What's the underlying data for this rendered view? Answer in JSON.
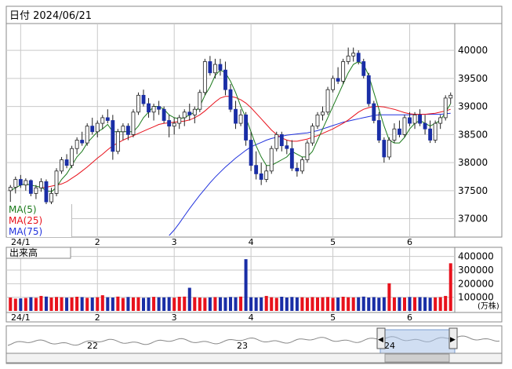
{
  "header": {
    "date_label": "日付 2024/06/21"
  },
  "colors": {
    "up": "#e8121c",
    "down": "#1a2ea6",
    "ma5": "#1b7a1b",
    "ma25": "#e8121c",
    "ma75": "#2233dd",
    "grid": "#c9c9c9",
    "border": "#8a8a8a"
  },
  "legend": [
    {
      "label": "MA(5)",
      "color": "#1b7a1b"
    },
    {
      "label": "MA(25)",
      "color": "#e8121c"
    },
    {
      "label": "MA(75)",
      "color": "#2233dd"
    }
  ],
  "volume_title": "出来高",
  "volume_unit": "(万株)",
  "navigator": {
    "labels": [
      "22",
      "23",
      "24"
    ],
    "left_handle": "◀",
    "right_handle": "▶"
  },
  "chart_data": [
    {
      "type": "candlestick",
      "title": "",
      "x_tick_labels": [
        "24/1",
        "2",
        "3",
        "4",
        "5",
        "6"
      ],
      "y_tick_labels": [
        "40000",
        "39500",
        "39000",
        "38500",
        "38000",
        "37500",
        "37000"
      ],
      "ylim": [
        36700,
        40450
      ],
      "grid": true,
      "candles": [
        {
          "o": 37500,
          "h": 37600,
          "l": 37300,
          "c": 37560
        },
        {
          "o": 37560,
          "h": 37750,
          "l": 37450,
          "c": 37700
        },
        {
          "o": 37700,
          "h": 37780,
          "l": 37550,
          "c": 37600
        },
        {
          "o": 37600,
          "h": 37720,
          "l": 37500,
          "c": 37680
        },
        {
          "o": 37680,
          "h": 37700,
          "l": 37400,
          "c": 37450
        },
        {
          "o": 37450,
          "h": 37600,
          "l": 37350,
          "c": 37550
        },
        {
          "o": 37550,
          "h": 37720,
          "l": 37480,
          "c": 37660
        },
        {
          "o": 37660,
          "h": 37700,
          "l": 37200,
          "c": 37300
        },
        {
          "o": 37300,
          "h": 37550,
          "l": 37200,
          "c": 37450
        },
        {
          "o": 37450,
          "h": 37900,
          "l": 37400,
          "c": 37850
        },
        {
          "o": 37850,
          "h": 38100,
          "l": 37800,
          "c": 38050
        },
        {
          "o": 38050,
          "h": 38150,
          "l": 37900,
          "c": 37950
        },
        {
          "o": 37950,
          "h": 38300,
          "l": 37900,
          "c": 38250
        },
        {
          "o": 38250,
          "h": 38450,
          "l": 38150,
          "c": 38400
        },
        {
          "o": 38400,
          "h": 38550,
          "l": 38300,
          "c": 38350
        },
        {
          "o": 38350,
          "h": 38700,
          "l": 38300,
          "c": 38650
        },
        {
          "o": 38650,
          "h": 38800,
          "l": 38500,
          "c": 38550
        },
        {
          "o": 38550,
          "h": 38750,
          "l": 38450,
          "c": 38700
        },
        {
          "o": 38700,
          "h": 38850,
          "l": 38600,
          "c": 38800
        },
        {
          "o": 38800,
          "h": 38950,
          "l": 38700,
          "c": 38750
        },
        {
          "o": 38750,
          "h": 38850,
          "l": 38050,
          "c": 38200
        },
        {
          "o": 38200,
          "h": 38600,
          "l": 38150,
          "c": 38550
        },
        {
          "o": 38550,
          "h": 38700,
          "l": 38400,
          "c": 38650
        },
        {
          "o": 38650,
          "h": 38700,
          "l": 38400,
          "c": 38500
        },
        {
          "o": 38500,
          "h": 38950,
          "l": 38450,
          "c": 38900
        },
        {
          "o": 38900,
          "h": 39250,
          "l": 38850,
          "c": 39200
        },
        {
          "o": 39200,
          "h": 39300,
          "l": 39000,
          "c": 39050
        },
        {
          "o": 39050,
          "h": 39150,
          "l": 38800,
          "c": 38900
        },
        {
          "o": 38900,
          "h": 39050,
          "l": 38750,
          "c": 39000
        },
        {
          "o": 39000,
          "h": 39100,
          "l": 38850,
          "c": 38950
        },
        {
          "o": 38950,
          "h": 39000,
          "l": 38700,
          "c": 38750
        },
        {
          "o": 38750,
          "h": 38850,
          "l": 38450,
          "c": 38650
        },
        {
          "o": 38650,
          "h": 38800,
          "l": 38500,
          "c": 38700
        },
        {
          "o": 38700,
          "h": 38850,
          "l": 38600,
          "c": 38800
        },
        {
          "o": 38800,
          "h": 38950,
          "l": 38650,
          "c": 38900
        },
        {
          "o": 38900,
          "h": 39050,
          "l": 38750,
          "c": 38850
        },
        {
          "o": 38850,
          "h": 39000,
          "l": 38700,
          "c": 38950
        },
        {
          "o": 38950,
          "h": 39300,
          "l": 38900,
          "c": 39250
        },
        {
          "o": 39250,
          "h": 39850,
          "l": 39200,
          "c": 39800
        },
        {
          "o": 39800,
          "h": 39900,
          "l": 39550,
          "c": 39600
        },
        {
          "o": 39600,
          "h": 39850,
          "l": 39500,
          "c": 39750
        },
        {
          "o": 39750,
          "h": 39850,
          "l": 39550,
          "c": 39650
        },
        {
          "o": 39650,
          "h": 39800,
          "l": 39200,
          "c": 39300
        },
        {
          "o": 39300,
          "h": 39400,
          "l": 38900,
          "c": 38950
        },
        {
          "o": 38950,
          "h": 39100,
          "l": 38600,
          "c": 38700
        },
        {
          "o": 38700,
          "h": 38950,
          "l": 38650,
          "c": 38850
        },
        {
          "o": 38850,
          "h": 38900,
          "l": 38300,
          "c": 38400
        },
        {
          "o": 38400,
          "h": 38550,
          "l": 37850,
          "c": 37950
        },
        {
          "o": 37950,
          "h": 38200,
          "l": 37700,
          "c": 37800
        },
        {
          "o": 37800,
          "h": 38000,
          "l": 37600,
          "c": 37700
        },
        {
          "o": 37700,
          "h": 37950,
          "l": 37650,
          "c": 37850
        },
        {
          "o": 37850,
          "h": 38300,
          "l": 37800,
          "c": 38250
        },
        {
          "o": 38250,
          "h": 38550,
          "l": 38200,
          "c": 38500
        },
        {
          "o": 38500,
          "h": 38550,
          "l": 38200,
          "c": 38300
        },
        {
          "o": 38300,
          "h": 38400,
          "l": 38150,
          "c": 38250
        },
        {
          "o": 38250,
          "h": 38400,
          "l": 37850,
          "c": 37900
        },
        {
          "o": 37900,
          "h": 38000,
          "l": 37750,
          "c": 37850
        },
        {
          "o": 37850,
          "h": 38100,
          "l": 37800,
          "c": 38050
        },
        {
          "o": 38050,
          "h": 38400,
          "l": 38000,
          "c": 38350
        },
        {
          "o": 38350,
          "h": 38700,
          "l": 38300,
          "c": 38650
        },
        {
          "o": 38650,
          "h": 38900,
          "l": 38600,
          "c": 38850
        },
        {
          "o": 38850,
          "h": 39000,
          "l": 38750,
          "c": 38900
        },
        {
          "o": 38900,
          "h": 39350,
          "l": 38850,
          "c": 39300
        },
        {
          "o": 39300,
          "h": 39550,
          "l": 39250,
          "c": 39500
        },
        {
          "o": 39500,
          "h": 39700,
          "l": 39400,
          "c": 39450
        },
        {
          "o": 39450,
          "h": 39850,
          "l": 39400,
          "c": 39800
        },
        {
          "o": 39800,
          "h": 40050,
          "l": 39750,
          "c": 39900
        },
        {
          "o": 39900,
          "h": 40050,
          "l": 39800,
          "c": 39950
        },
        {
          "o": 39950,
          "h": 40000,
          "l": 39750,
          "c": 39800
        },
        {
          "o": 39800,
          "h": 39850,
          "l": 39500,
          "c": 39550
        },
        {
          "o": 39550,
          "h": 39600,
          "l": 39000,
          "c": 39050
        },
        {
          "o": 39050,
          "h": 39100,
          "l": 38700,
          "c": 38750
        },
        {
          "o": 38750,
          "h": 38900,
          "l": 38350,
          "c": 38400
        },
        {
          "o": 38400,
          "h": 38450,
          "l": 38000,
          "c": 38100
        },
        {
          "o": 38100,
          "h": 38450,
          "l": 38050,
          "c": 38400
        },
        {
          "o": 38400,
          "h": 38700,
          "l": 38350,
          "c": 38600
        },
        {
          "o": 38600,
          "h": 38750,
          "l": 38450,
          "c": 38500
        },
        {
          "o": 38500,
          "h": 38850,
          "l": 38450,
          "c": 38800
        },
        {
          "o": 38800,
          "h": 38900,
          "l": 38650,
          "c": 38700
        },
        {
          "o": 38700,
          "h": 38900,
          "l": 38600,
          "c": 38850
        },
        {
          "o": 38850,
          "h": 38950,
          "l": 38650,
          "c": 38700
        },
        {
          "o": 38700,
          "h": 38850,
          "l": 38500,
          "c": 38600
        },
        {
          "o": 38600,
          "h": 38750,
          "l": 38350,
          "c": 38400
        },
        {
          "o": 38400,
          "h": 38750,
          "l": 38350,
          "c": 38700
        },
        {
          "o": 38700,
          "h": 38850,
          "l": 38600,
          "c": 38800
        },
        {
          "o": 38800,
          "h": 39200,
          "l": 38750,
          "c": 39150
        },
        {
          "o": 39150,
          "h": 39250,
          "l": 39050,
          "c": 39200
        }
      ],
      "ma5": [
        37500,
        37550,
        37600,
        37620,
        37600,
        37580,
        37560,
        37500,
        37480,
        37560,
        37700,
        37800,
        37950,
        38100,
        38200,
        38350,
        38450,
        38550,
        38600,
        38680,
        38550,
        38550,
        38550,
        38550,
        38550,
        38650,
        38800,
        38900,
        39000,
        39000,
        38950,
        38850,
        38800,
        38780,
        38800,
        38850,
        38900,
        39000,
        39200,
        39350,
        39550,
        39650,
        39600,
        39450,
        39250,
        39000,
        38800,
        38550,
        38300,
        38100,
        37950,
        37950,
        38000,
        38050,
        38100,
        38200,
        38150,
        38100,
        38100,
        38200,
        38400,
        38600,
        38800,
        39000,
        39200,
        39400,
        39600,
        39750,
        39800,
        39750,
        39550,
        39250,
        38950,
        38650,
        38400,
        38350,
        38350,
        38450,
        38600,
        38700,
        38750,
        38700,
        38650,
        38700,
        38750,
        38900,
        39050
      ],
      "ma25": [
        null,
        null,
        null,
        null,
        null,
        null,
        37550,
        37560,
        37580,
        37600,
        37620,
        37660,
        37720,
        37780,
        37850,
        37920,
        38000,
        38080,
        38150,
        38230,
        38300,
        38350,
        38400,
        38440,
        38480,
        38520,
        38560,
        38600,
        38640,
        38680,
        38700,
        38710,
        38720,
        38730,
        38740,
        38760,
        38800,
        38850,
        38920,
        39000,
        39080,
        39150,
        39180,
        39180,
        39160,
        39120,
        39060,
        38980,
        38880,
        38780,
        38680,
        38580,
        38500,
        38440,
        38400,
        38380,
        38380,
        38400,
        38420,
        38450,
        38480,
        38520,
        38560,
        38600,
        38650,
        38700,
        38760,
        38830,
        38900,
        38950,
        38980,
        39000,
        39000,
        38990,
        38970,
        38950,
        38920,
        38890,
        38870,
        38860,
        38860,
        38860,
        38870,
        38880,
        38900,
        38920,
        38950
      ],
      "ma75": [
        null,
        null,
        null,
        null,
        null,
        null,
        null,
        null,
        null,
        null,
        null,
        null,
        null,
        null,
        null,
        null,
        null,
        null,
        null,
        null,
        null,
        null,
        null,
        null,
        null,
        null,
        null,
        null,
        null,
        null,
        null,
        36700,
        36800,
        36920,
        37050,
        37180,
        37300,
        37420,
        37530,
        37640,
        37740,
        37830,
        37920,
        38000,
        38080,
        38150,
        38220,
        38280,
        38320,
        38360,
        38400,
        38430,
        38450,
        38470,
        38490,
        38500,
        38510,
        38520,
        38530,
        38550,
        38570,
        38600,
        38630,
        38660,
        38690,
        38720,
        38740,
        38760,
        38780,
        38800,
        38820,
        38840,
        38850,
        38850,
        38850,
        38850,
        38850,
        38850,
        38850,
        38860,
        38860,
        38860,
        38860,
        38860,
        38860,
        38870,
        38880
      ]
    },
    {
      "type": "bar",
      "title": "出来高",
      "unit": "(万株)",
      "x_tick_labels": [
        "24/1",
        "2",
        "3",
        "4",
        "5",
        "6"
      ],
      "y_tick_labels": [
        "400000",
        "300000",
        "200000",
        "100000"
      ],
      "ylim": [
        0,
        450000
      ],
      "values": [
        98000,
        90000,
        92000,
        95000,
        100000,
        96000,
        110000,
        105000,
        98000,
        102000,
        100000,
        97000,
        99000,
        104000,
        101000,
        96000,
        98000,
        100000,
        115000,
        100000,
        98000,
        105000,
        95000,
        102000,
        99000,
        100000,
        96000,
        98000,
        103000,
        100000,
        99000,
        101000,
        97000,
        104000,
        105000,
        170000,
        100000,
        98000,
        96000,
        99000,
        101000,
        100000,
        98000,
        102000,
        100000,
        105000,
        380000,
        100000,
        98000,
        99000,
        110000,
        100000,
        96000,
        104000,
        98000,
        102000,
        99000,
        100000,
        97000,
        101000,
        99000,
        100000,
        102000,
        96000,
        98000,
        104000,
        100000,
        99000,
        100000,
        105000,
        98000,
        101000,
        97000,
        100000,
        203000,
        99000,
        100000,
        98000,
        102000,
        100000,
        101000,
        100000,
        97000,
        99000,
        101000,
        110000,
        350000
      ]
    }
  ]
}
